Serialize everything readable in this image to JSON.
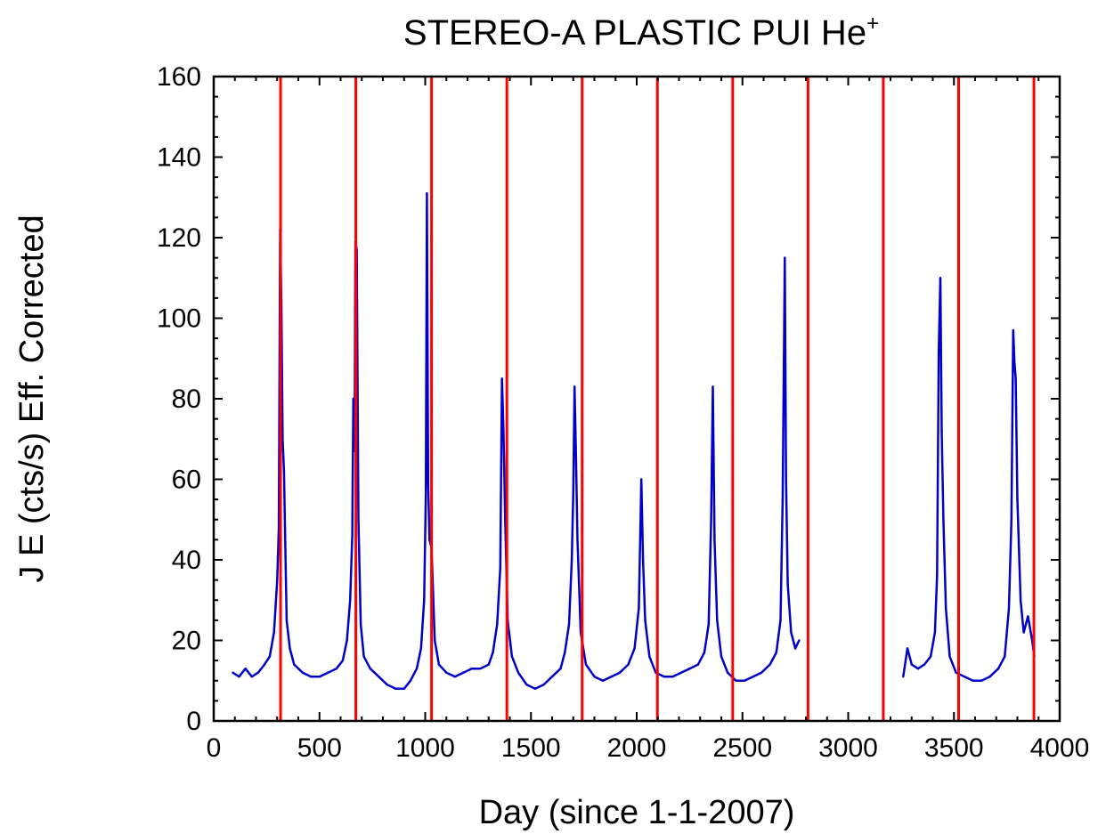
{
  "chart_data": {
    "type": "line",
    "title": "STEREO-A PLASTIC PUI He",
    "title_superscript": "+",
    "xlabel": "Day (since 1-1-2007)",
    "ylabel": "J E (cts/s) Eff. Corrected",
    "xlim": [
      0,
      4000
    ],
    "ylim": [
      0,
      160
    ],
    "xticks": [
      0,
      500,
      1000,
      1500,
      2000,
      2500,
      3000,
      3500,
      4000
    ],
    "yticks": [
      0,
      20,
      40,
      60,
      80,
      100,
      120,
      140,
      160
    ],
    "grid": false,
    "legend": "none",
    "colors": {
      "series": "#0000cc",
      "markers": "#ff0000"
    },
    "vertical_lines": [
      316,
      672,
      1030,
      1386,
      1742,
      2098,
      2454,
      2810,
      3166,
      3522,
      3878
    ],
    "series": [
      {
        "points": [
          [
            90,
            12
          ],
          [
            120,
            11
          ],
          [
            150,
            13
          ],
          [
            180,
            11
          ],
          [
            210,
            12
          ],
          [
            240,
            14
          ],
          [
            265,
            16
          ],
          [
            285,
            22
          ],
          [
            300,
            35
          ],
          [
            308,
            48
          ],
          [
            314,
            122
          ],
          [
            320,
            103
          ],
          [
            326,
            70
          ],
          [
            332,
            62
          ],
          [
            345,
            25
          ],
          [
            360,
            18
          ],
          [
            380,
            14
          ],
          [
            420,
            12
          ],
          [
            460,
            11
          ],
          [
            500,
            11
          ],
          [
            540,
            12
          ],
          [
            580,
            13
          ],
          [
            610,
            15
          ],
          [
            630,
            20
          ],
          [
            645,
            30
          ],
          [
            655,
            46
          ],
          [
            660,
            80
          ],
          [
            666,
            67
          ],
          [
            670,
            119
          ],
          [
            676,
            117
          ],
          [
            684,
            50
          ],
          [
            695,
            24
          ],
          [
            710,
            16
          ],
          [
            740,
            13
          ],
          [
            780,
            11
          ],
          [
            820,
            9
          ],
          [
            860,
            8
          ],
          [
            900,
            8
          ],
          [
            930,
            10
          ],
          [
            960,
            13
          ],
          [
            980,
            18
          ],
          [
            995,
            30
          ],
          [
            1003,
            56
          ],
          [
            1008,
            131
          ],
          [
            1014,
            59
          ],
          [
            1020,
            45
          ],
          [
            1030,
            43
          ],
          [
            1045,
            20
          ],
          [
            1065,
            14
          ],
          [
            1100,
            12
          ],
          [
            1140,
            11
          ],
          [
            1180,
            12
          ],
          [
            1220,
            13
          ],
          [
            1260,
            13
          ],
          [
            1300,
            14
          ],
          [
            1320,
            17
          ],
          [
            1340,
            24
          ],
          [
            1355,
            38
          ],
          [
            1363,
            85
          ],
          [
            1370,
            72
          ],
          [
            1378,
            50
          ],
          [
            1390,
            25
          ],
          [
            1410,
            16
          ],
          [
            1440,
            12
          ],
          [
            1480,
            9
          ],
          [
            1520,
            8
          ],
          [
            1560,
            9
          ],
          [
            1600,
            11
          ],
          [
            1640,
            13
          ],
          [
            1660,
            17
          ],
          [
            1680,
            24
          ],
          [
            1693,
            40
          ],
          [
            1700,
            57
          ],
          [
            1706,
            83
          ],
          [
            1712,
            68
          ],
          [
            1720,
            45
          ],
          [
            1735,
            22
          ],
          [
            1760,
            14
          ],
          [
            1800,
            11
          ],
          [
            1840,
            10
          ],
          [
            1880,
            11
          ],
          [
            1920,
            12
          ],
          [
            1960,
            14
          ],
          [
            1990,
            18
          ],
          [
            2010,
            28
          ],
          [
            2022,
            60
          ],
          [
            2030,
            40
          ],
          [
            2040,
            25
          ],
          [
            2060,
            16
          ],
          [
            2090,
            12
          ],
          [
            2130,
            11
          ],
          [
            2170,
            11
          ],
          [
            2210,
            12
          ],
          [
            2250,
            13
          ],
          [
            2290,
            14
          ],
          [
            2320,
            17
          ],
          [
            2340,
            24
          ],
          [
            2352,
            50
          ],
          [
            2360,
            83
          ],
          [
            2368,
            45
          ],
          [
            2380,
            25
          ],
          [
            2400,
            16
          ],
          [
            2430,
            12
          ],
          [
            2470,
            10
          ],
          [
            2510,
            10
          ],
          [
            2550,
            11
          ],
          [
            2590,
            12
          ],
          [
            2630,
            14
          ],
          [
            2660,
            17
          ],
          [
            2680,
            25
          ],
          [
            2690,
            55
          ],
          [
            2700,
            115
          ],
          [
            2706,
            60
          ],
          [
            2714,
            34
          ],
          [
            2730,
            22
          ],
          [
            2750,
            18
          ],
          [
            2768,
            20
          ],
          [
            null,
            null
          ],
          [
            3260,
            11
          ],
          [
            3280,
            18
          ],
          [
            3300,
            14
          ],
          [
            3330,
            13
          ],
          [
            3360,
            14
          ],
          [
            3390,
            16
          ],
          [
            3410,
            22
          ],
          [
            3420,
            36
          ],
          [
            3428,
            92
          ],
          [
            3436,
            110
          ],
          [
            3442,
            72
          ],
          [
            3450,
            50
          ],
          [
            3462,
            28
          ],
          [
            3480,
            16
          ],
          [
            3510,
            12
          ],
          [
            3550,
            11
          ],
          [
            3590,
            10
          ],
          [
            3630,
            10
          ],
          [
            3670,
            11
          ],
          [
            3710,
            13
          ],
          [
            3740,
            16
          ],
          [
            3760,
            28
          ],
          [
            3772,
            50
          ],
          [
            3780,
            97
          ],
          [
            3786,
            89
          ],
          [
            3792,
            85
          ],
          [
            3800,
            55
          ],
          [
            3815,
            30
          ],
          [
            3830,
            22
          ],
          [
            3850,
            26
          ],
          [
            3870,
            20
          ],
          [
            3880,
            16
          ]
        ]
      }
    ]
  }
}
